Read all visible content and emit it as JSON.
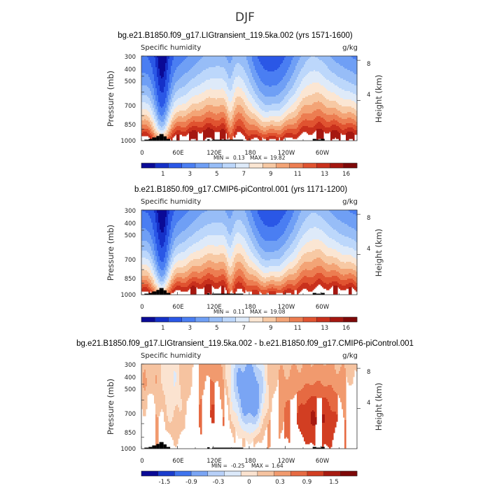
{
  "figure": {
    "title": "DJF"
  },
  "chart_data": [
    {
      "type": "heatmap",
      "title": "bg.e21.B1850.f09_g17.LIGtransient_119.5ka.002 (yrs 1571-1600)",
      "subtitle_left": "Specific humidity",
      "subtitle_right": "g/kg",
      "xlabel": "",
      "ylabel": "Pressure (mb)",
      "ylabel_right": "Height (km)",
      "x_ticks": [
        "0",
        "60E",
        "120E",
        "180",
        "120W",
        "60W"
      ],
      "x_tick_lon": [
        0,
        60,
        120,
        180,
        240,
        300
      ],
      "xlim": [
        0,
        360
      ],
      "y_ticks": [
        "300",
        "400",
        "500",
        "700",
        "850",
        "1000"
      ],
      "y_tick_values": [
        300,
        400,
        500,
        700,
        850,
        1000
      ],
      "ylim": [
        1000,
        300
      ],
      "y_scale": "log-pressure",
      "right_ticks": [
        "8",
        "4"
      ],
      "right_tick_values": [
        8,
        4
      ],
      "stats": {
        "min_label": "MIN =",
        "min": "0.13",
        "max_label": "MAX =",
        "max": "19.82"
      },
      "colorbar": {
        "labels": [
          "1",
          "3",
          "5",
          "7",
          "9",
          "11",
          "13",
          "16"
        ],
        "colors": [
          "#0a0a96",
          "#1530c8",
          "#2a57e6",
          "#4a7ef2",
          "#6f9ff5",
          "#97bdf7",
          "#bcd7fb",
          "#deeaf9",
          "#fbe6d3",
          "#f7c9a4",
          "#f3a476",
          "#ec7d51",
          "#e05330",
          "#c9301c",
          "#a51710",
          "#7e0808"
        ]
      },
      "field": "humidity",
      "surface_ps": 990
    },
    {
      "type": "heatmap",
      "title": "b.e21.B1850.f09_g17.CMIP6-piControl.001 (yrs 1171-1200)",
      "subtitle_left": "Specific humidity",
      "subtitle_right": "g/kg",
      "xlabel": "",
      "ylabel": "Pressure (mb)",
      "ylabel_right": "Height (km)",
      "x_ticks": [
        "0",
        "60E",
        "120E",
        "180",
        "120W",
        "60W"
      ],
      "x_tick_lon": [
        0,
        60,
        120,
        180,
        240,
        300
      ],
      "xlim": [
        0,
        360
      ],
      "y_ticks": [
        "300",
        "400",
        "500",
        "700",
        "850",
        "1000"
      ],
      "y_tick_values": [
        300,
        400,
        500,
        700,
        850,
        1000
      ],
      "ylim": [
        1000,
        300
      ],
      "y_scale": "log-pressure",
      "right_ticks": [
        "8",
        "4"
      ],
      "right_tick_values": [
        8,
        4
      ],
      "stats": {
        "min_label": "MIN =",
        "min": "0.11",
        "max_label": "MAX =",
        "max": "19.08"
      },
      "colorbar": {
        "labels": [
          "1",
          "3",
          "5",
          "7",
          "9",
          "11",
          "13",
          "16"
        ],
        "colors": [
          "#0a0a96",
          "#1530c8",
          "#2a57e6",
          "#4a7ef2",
          "#6f9ff5",
          "#97bdf7",
          "#bcd7fb",
          "#deeaf9",
          "#fbe6d3",
          "#f7c9a4",
          "#f3a476",
          "#ec7d51",
          "#e05330",
          "#c9301c",
          "#a51710",
          "#7e0808"
        ]
      },
      "field": "humidity",
      "surface_ps": 990
    },
    {
      "type": "heatmap",
      "title": "bg.e21.B1850.f09_g17.LIGtransient_119.5ka.002 - b.e21.B1850.f09_g17.CMIP6-piControl.001",
      "subtitle_left": "Specific humidity",
      "subtitle_right": "g/kg",
      "xlabel": "",
      "ylabel": "Pressure (mb)",
      "ylabel_right": "Height (km)",
      "x_ticks": [
        "0",
        "60E",
        "120E",
        "180",
        "120W",
        "60W"
      ],
      "x_tick_lon": [
        0,
        60,
        120,
        180,
        240,
        300
      ],
      "xlim": [
        0,
        360
      ],
      "y_ticks": [
        "300",
        "400",
        "500",
        "700",
        "850",
        "1000"
      ],
      "y_tick_values": [
        300,
        400,
        500,
        700,
        850,
        1000
      ],
      "ylim": [
        1000,
        300
      ],
      "y_scale": "log-pressure",
      "right_ticks": [
        "8",
        "4"
      ],
      "right_tick_values": [
        8,
        4
      ],
      "stats": {
        "min_label": "MIN =",
        "min": "-0.25",
        "max_label": "MAX =",
        "max": "1.64"
      },
      "colorbar": {
        "labels": [
          "-1.5",
          "-0.9",
          "-0.3",
          "0",
          "0.3",
          "0.9",
          "1.5"
        ],
        "colors": [
          "#0a0a96",
          "#1a3ccc",
          "#3f74ee",
          "#7aa5f4",
          "#b7d0f8",
          "#dce9fa",
          "#fbe3d0",
          "#f6c3a0",
          "#f19a6e",
          "#e66a42",
          "#d23e22",
          "#a81a10",
          "#7e0808"
        ]
      },
      "field": "difference",
      "surface_ps": 990
    }
  ]
}
